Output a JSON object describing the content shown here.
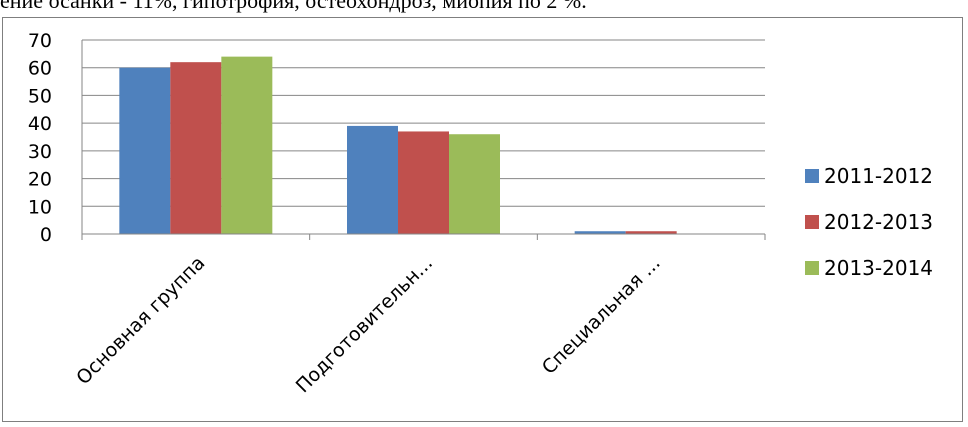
{
  "page": {
    "top_text": "ение осанки - 11%, гипотрофия, остеохондроз, миопия по 2 %."
  },
  "chart_data": {
    "type": "bar",
    "categories": [
      "Основная группа",
      "Подготовительн...",
      "Специальная ..."
    ],
    "series": [
      {
        "name": "2011-2012",
        "values": [
          60,
          39,
          1
        ],
        "color": "#4f81bd"
      },
      {
        "name": "2012-2013",
        "values": [
          62,
          37,
          1
        ],
        "color": "#c0504d"
      },
      {
        "name": "2013-2014",
        "values": [
          64,
          36,
          0
        ],
        "color": "#9bbb59"
      }
    ],
    "yticks": [
      "0",
      "10",
      "20",
      "30",
      "40",
      "50",
      "60",
      "70"
    ],
    "ylim": [
      0,
      70
    ],
    "grid": true,
    "legend_position": "right",
    "title": "",
    "xlabel": "",
    "ylabel": ""
  }
}
